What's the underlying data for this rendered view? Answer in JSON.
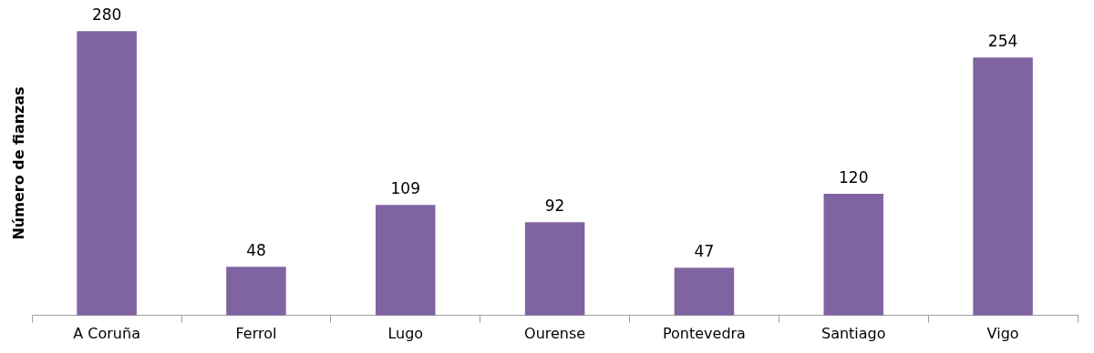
{
  "chart_data": {
    "type": "bar",
    "ylabel": "Número de fianzas",
    "categories": [
      "A Coruña",
      "Ferrol",
      "Lugo",
      "Ourense",
      "Pontevedra",
      "Santiago",
      "Vigo"
    ],
    "values": [
      280,
      48,
      109,
      92,
      47,
      120,
      254
    ],
    "color": "#8064a2",
    "data_labels": true,
    "grid": false,
    "legend": false
  }
}
